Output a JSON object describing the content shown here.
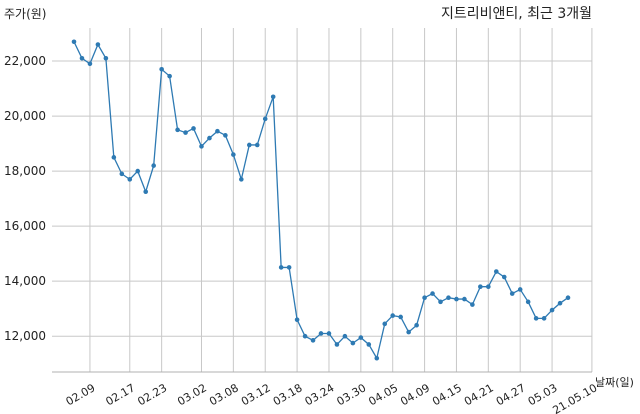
{
  "chart_data": {
    "type": "line",
    "title": "지트리비앤티, 최근 3개월",
    "xlabel": "날짜(일)",
    "ylabel": "주가(원)",
    "ylim": [
      10700,
      23200
    ],
    "yticks": [
      12000,
      14000,
      16000,
      18000,
      20000,
      22000
    ],
    "ytick_labels": [
      "12,000",
      "14,000",
      "16,000",
      "18,000",
      "20,000",
      "22,000"
    ],
    "xtick_labels": [
      "02.09",
      "02.17",
      "02.23",
      "03.02",
      "03.08",
      "03.12",
      "03.18",
      "03.24",
      "03.30",
      "04.05",
      "04.09",
      "04.15",
      "04.21",
      "04.27",
      "05.03",
      "21.05.10"
    ],
    "xtick_index": [
      2,
      7,
      11,
      16,
      20,
      24,
      28,
      32,
      36,
      40,
      44,
      48,
      52,
      56,
      60,
      65
    ],
    "grid": true,
    "color": "#2e7ab3",
    "series": [
      {
        "values": [
          22700,
          22100,
          21900,
          22600,
          22100,
          18500,
          17900,
          17700,
          18000,
          17250,
          18200,
          21700,
          21450,
          19500,
          19400,
          19550,
          18900,
          19200,
          19450,
          19300,
          18600,
          17700,
          18950,
          18950,
          19900,
          20700,
          14500,
          14500,
          12600,
          12000,
          11850,
          12100,
          12100,
          11700,
          12000,
          11750,
          11950,
          11700,
          11200,
          12450,
          12750,
          12700,
          12150,
          12400,
          13400,
          13550,
          13250,
          13400,
          13350,
          13350,
          13150,
          13800,
          13800,
          14350,
          14150,
          13550,
          13700,
          13250,
          12650,
          12650,
          12950,
          13200,
          13400
        ]
      }
    ]
  }
}
